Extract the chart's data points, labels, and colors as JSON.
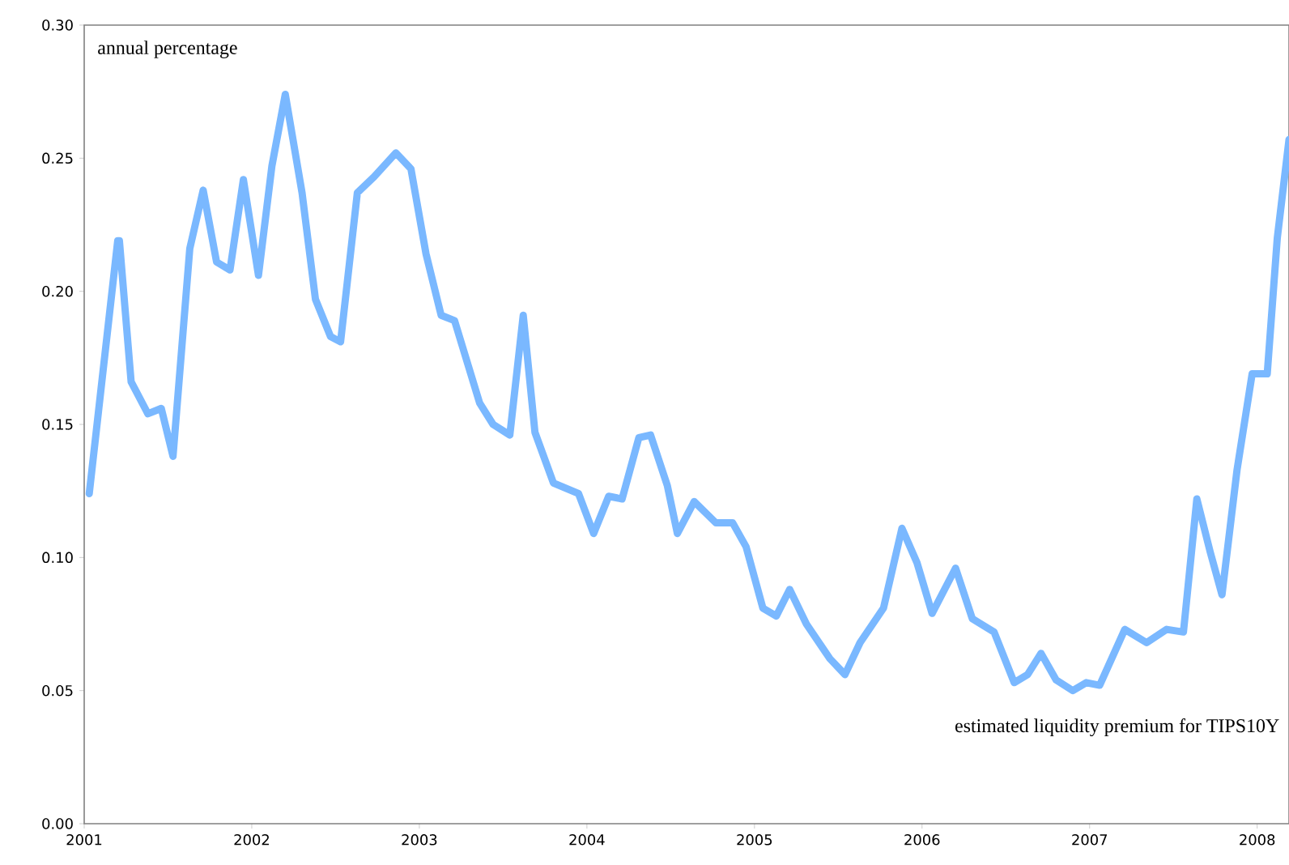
{
  "chart_data": {
    "type": "line",
    "annotations": [
      "annual percentage",
      "estimated liquidity premium for TIPS10Y"
    ],
    "x": [
      2001.03,
      2001.2,
      2001.21,
      2001.28,
      2001.38,
      2001.46,
      2001.53,
      2001.63,
      2001.71,
      2001.79,
      2001.87,
      2001.95,
      2002.04,
      2002.12,
      2002.2,
      2002.3,
      2002.38,
      2002.47,
      2002.53,
      2002.63,
      2002.73,
      2002.86,
      2002.95,
      2003.04,
      2003.13,
      2003.21,
      2003.36,
      2003.44,
      2003.54,
      2003.62,
      2003.69,
      2003.8,
      2003.95,
      2004.04,
      2004.13,
      2004.21,
      2004.31,
      2004.38,
      2004.48,
      2004.54,
      2004.64,
      2004.77,
      2004.87,
      2004.95,
      2005.05,
      2005.13,
      2005.21,
      2005.31,
      2005.45,
      2005.54,
      2005.63,
      2005.77,
      2005.88,
      2005.97,
      2006.06,
      2006.2,
      2006.3,
      2006.43,
      2006.55,
      2006.63,
      2006.71,
      2006.8,
      2006.9,
      2006.98,
      2007.06,
      2007.21,
      2007.34,
      2007.46,
      2007.56,
      2007.64,
      2007.72,
      2007.79,
      2007.88,
      2007.97,
      2008.06,
      2008.12,
      2008.19
    ],
    "series": [
      {
        "color": "#7ab8ff",
        "values": [
          0.124,
          0.219,
          0.219,
          0.166,
          0.154,
          0.156,
          0.138,
          0.216,
          0.238,
          0.211,
          0.208,
          0.242,
          0.206,
          0.247,
          0.274,
          0.237,
          0.197,
          0.183,
          0.181,
          0.237,
          0.243,
          0.252,
          0.246,
          0.214,
          0.191,
          0.189,
          0.158,
          0.15,
          0.146,
          0.191,
          0.147,
          0.128,
          0.124,
          0.109,
          0.123,
          0.122,
          0.145,
          0.146,
          0.127,
          0.109,
          0.121,
          0.113,
          0.113,
          0.104,
          0.081,
          0.078,
          0.088,
          0.075,
          0.062,
          0.056,
          0.068,
          0.081,
          0.111,
          0.098,
          0.079,
          0.096,
          0.077,
          0.072,
          0.053,
          0.056,
          0.064,
          0.054,
          0.05,
          0.053,
          0.052,
          0.073,
          0.068,
          0.073,
          0.072,
          0.122,
          0.102,
          0.086,
          0.133,
          0.169,
          0.169,
          0.22,
          0.257
        ]
      }
    ],
    "xlim": [
      2001,
      2008.19
    ],
    "ylim": [
      0,
      0.3
    ],
    "xticks": [
      2001,
      2002,
      2003,
      2004,
      2005,
      2006,
      2007,
      2008
    ],
    "yticks": [
      {
        "value": 0,
        "label": "0.00"
      },
      {
        "value": 0.05,
        "label": "0.05"
      },
      {
        "value": 0.1,
        "label": "0.10"
      },
      {
        "value": 0.15,
        "label": "0.15"
      },
      {
        "value": 0.2,
        "label": "0.20"
      },
      {
        "value": 0.25,
        "label": "0.25"
      },
      {
        "value": 0.3,
        "label": "0.30"
      }
    ],
    "grid": false,
    "marker": "none",
    "line_style": "solid"
  }
}
